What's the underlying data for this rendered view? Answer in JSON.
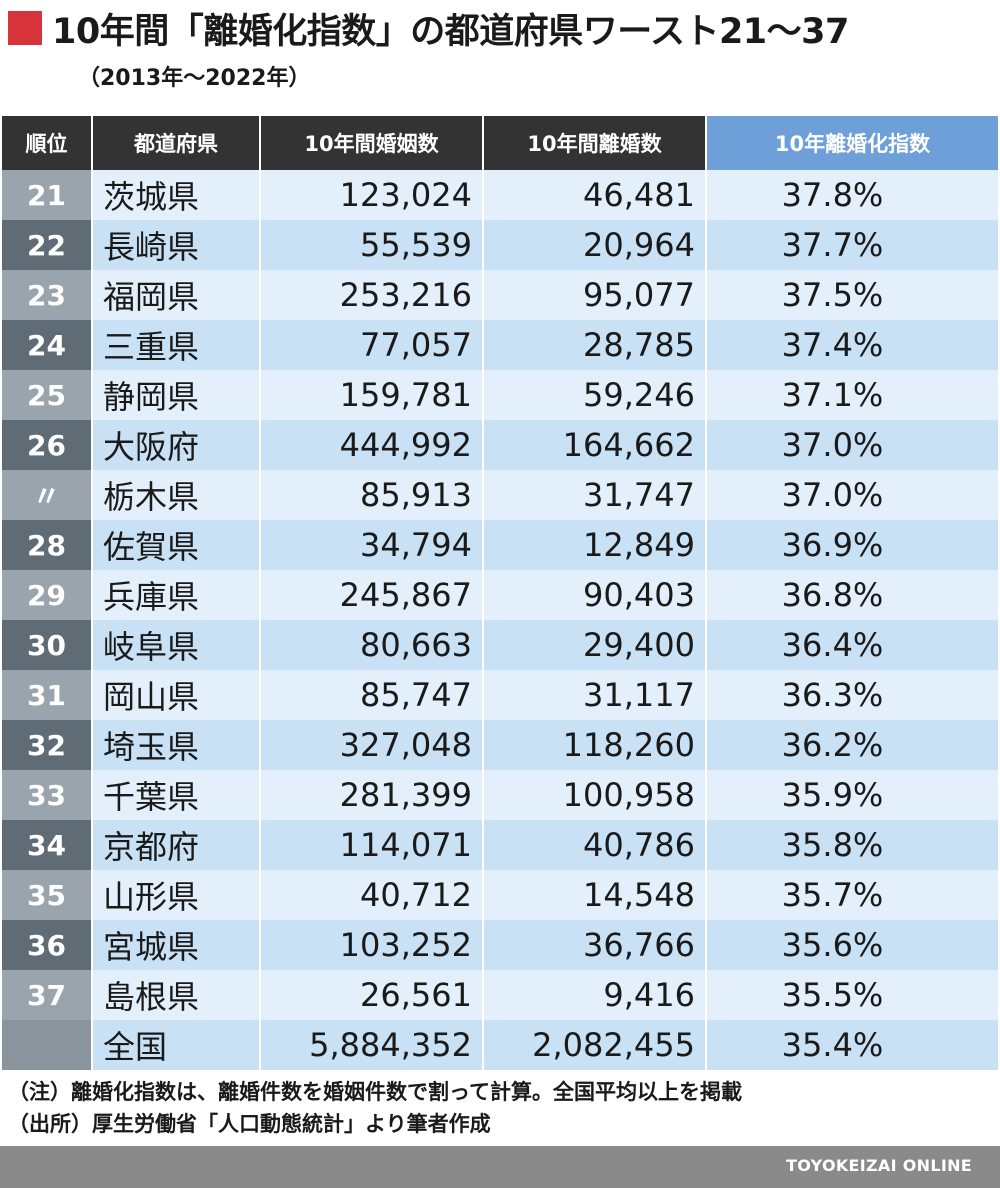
{
  "title": "10年間「離婚化指数」の都道府県ワースト21〜37",
  "subtitle": "（2013年〜2022年）",
  "headers": {
    "rank": "順位",
    "prefecture": "都道府県",
    "marriages": "10年間婚姻数",
    "divorces": "10年間離婚数",
    "index": "10年離婚化指数"
  },
  "rows": [
    {
      "rank": "21",
      "prefecture": "茨城県",
      "marriages": "123,024",
      "divorces": "46,481",
      "index": "37.8%"
    },
    {
      "rank": "22",
      "prefecture": "長崎県",
      "marriages": "55,539",
      "divorces": "20,964",
      "index": "37.7%"
    },
    {
      "rank": "23",
      "prefecture": "福岡県",
      "marriages": "253,216",
      "divorces": "95,077",
      "index": "37.5%"
    },
    {
      "rank": "24",
      "prefecture": "三重県",
      "marriages": "77,057",
      "divorces": "28,785",
      "index": "37.4%"
    },
    {
      "rank": "25",
      "prefecture": "静岡県",
      "marriages": "159,781",
      "divorces": "59,246",
      "index": "37.1%"
    },
    {
      "rank": "26",
      "prefecture": "大阪府",
      "marriages": "444,992",
      "divorces": "164,662",
      "index": "37.0%"
    },
    {
      "rank": "〃",
      "prefecture": "栃木県",
      "marriages": "85,913",
      "divorces": "31,747",
      "index": "37.0%"
    },
    {
      "rank": "28",
      "prefecture": "佐賀県",
      "marriages": "34,794",
      "divorces": "12,849",
      "index": "36.9%"
    },
    {
      "rank": "29",
      "prefecture": "兵庫県",
      "marriages": "245,867",
      "divorces": "90,403",
      "index": "36.8%"
    },
    {
      "rank": "30",
      "prefecture": "岐阜県",
      "marriages": "80,663",
      "divorces": "29,400",
      "index": "36.4%"
    },
    {
      "rank": "31",
      "prefecture": "岡山県",
      "marriages": "85,747",
      "divorces": "31,117",
      "index": "36.3%"
    },
    {
      "rank": "32",
      "prefecture": "埼玉県",
      "marriages": "327,048",
      "divorces": "118,260",
      "index": "36.2%"
    },
    {
      "rank": "33",
      "prefecture": "千葉県",
      "marriages": "281,399",
      "divorces": "100,958",
      "index": "35.9%"
    },
    {
      "rank": "34",
      "prefecture": "京都府",
      "marriages": "114,071",
      "divorces": "40,786",
      "index": "35.8%"
    },
    {
      "rank": "35",
      "prefecture": "山形県",
      "marriages": "40,712",
      "divorces": "14,548",
      "index": "35.7%"
    },
    {
      "rank": "36",
      "prefecture": "宮城県",
      "marriages": "103,252",
      "divorces": "36,766",
      "index": "35.6%"
    },
    {
      "rank": "37",
      "prefecture": "島根県",
      "marriages": "26,561",
      "divorces": "9,416",
      "index": "35.5%"
    }
  ],
  "total": {
    "rank": "",
    "prefecture": "全国",
    "marriages": "5,884,352",
    "divorces": "2,082,455",
    "index": "35.4%"
  },
  "notes": [
    "（注）離婚化指数は、離婚件数を婚姻件数で割って計算。全国平均以上を掲載",
    "（出所）厚生労働省「人口動態統計」より筆者作成"
  ],
  "footer": {
    "brand": "TOYOKEIZAI ONLINE"
  },
  "colors": {
    "title_mark": "#d7333b",
    "header_dark": "#333333",
    "header_index": "#6f9fd9",
    "row_light": "#e3f0fb",
    "row_dark": "#c8e1f5",
    "rank_light": "#9aa4ac",
    "rank_dark": "#5f6c76",
    "footer_bar": "#8a8a8a"
  }
}
